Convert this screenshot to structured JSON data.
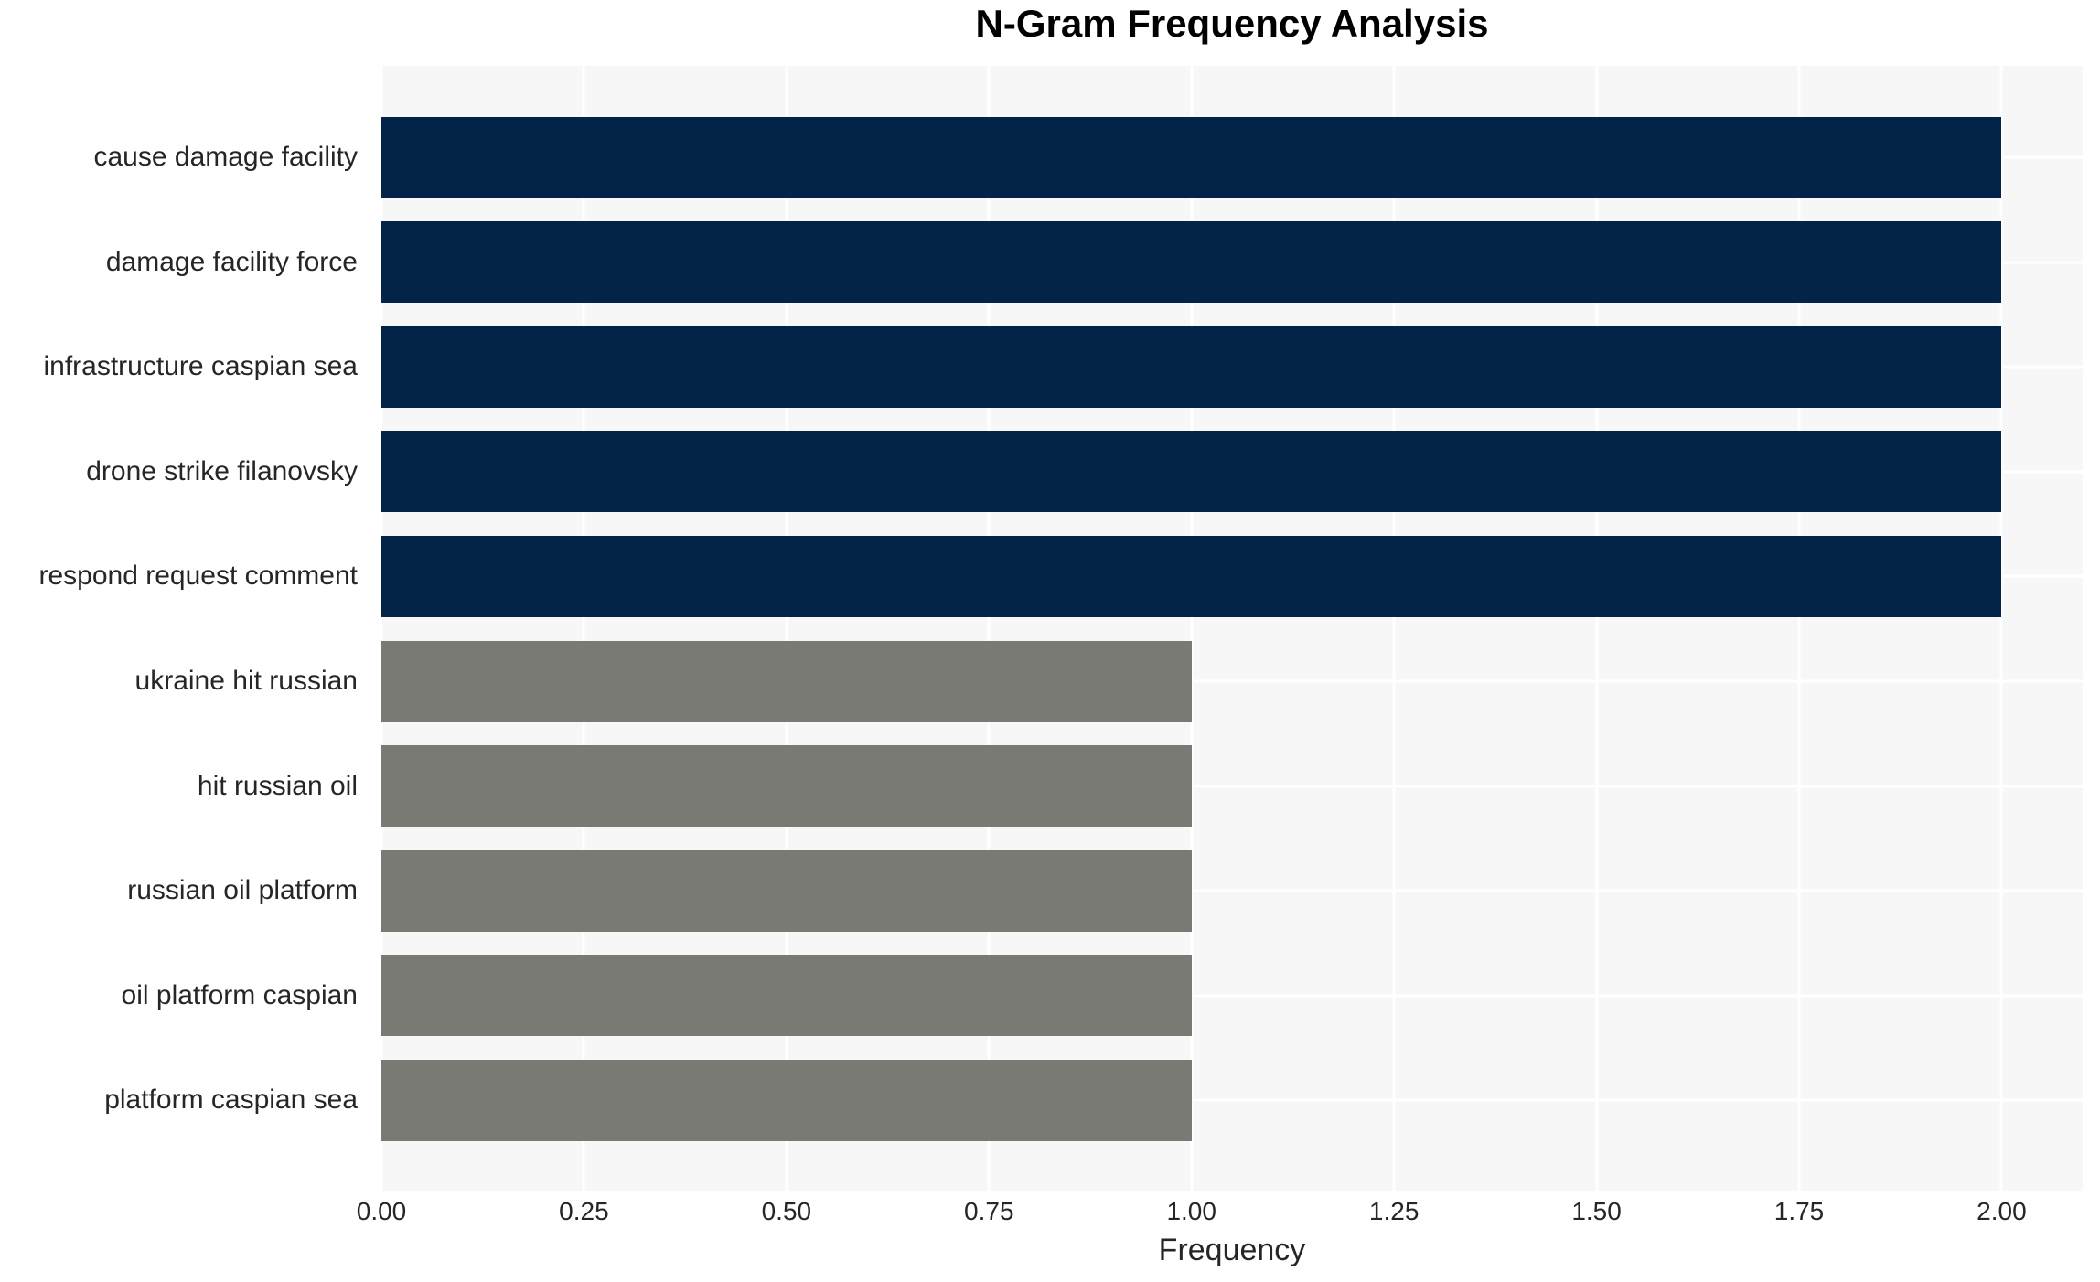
{
  "chart_data": {
    "type": "bar",
    "orientation": "horizontal",
    "title": "N-Gram Frequency Analysis",
    "xlabel": "Frequency",
    "ylabel": "",
    "categories": [
      "cause damage facility",
      "damage facility force",
      "infrastructure caspian sea",
      "drone strike filanovsky",
      "respond request comment",
      "ukraine hit russian",
      "hit russian oil",
      "russian oil platform",
      "oil platform caspian",
      "platform caspian sea"
    ],
    "values": [
      2,
      2,
      2,
      2,
      2,
      1,
      1,
      1,
      1,
      1
    ],
    "bar_colors": [
      "#032349",
      "#032349",
      "#032349",
      "#032349",
      "#032349",
      "#7a7a74",
      "#7a7a74",
      "#7a7a74",
      "#7a7a74",
      "#7a7a74"
    ],
    "xlim": [
      0,
      2.1
    ],
    "xticks": [
      0.0,
      0.25,
      0.5,
      0.75,
      1.0,
      1.25,
      1.5,
      1.75,
      2.0
    ],
    "xtick_labels": [
      "0.00",
      "0.25",
      "0.50",
      "0.75",
      "1.00",
      "1.25",
      "1.50",
      "1.75",
      "2.00"
    ],
    "grid": true,
    "legend": "none",
    "colors": {
      "high_freq_bar": "#032349",
      "low_freq_bar": "#7a7a74",
      "plot_background": "#f7f7f7",
      "gridline": "#ffffff",
      "tick_text": "#262626",
      "title_text": "#000000"
    }
  }
}
